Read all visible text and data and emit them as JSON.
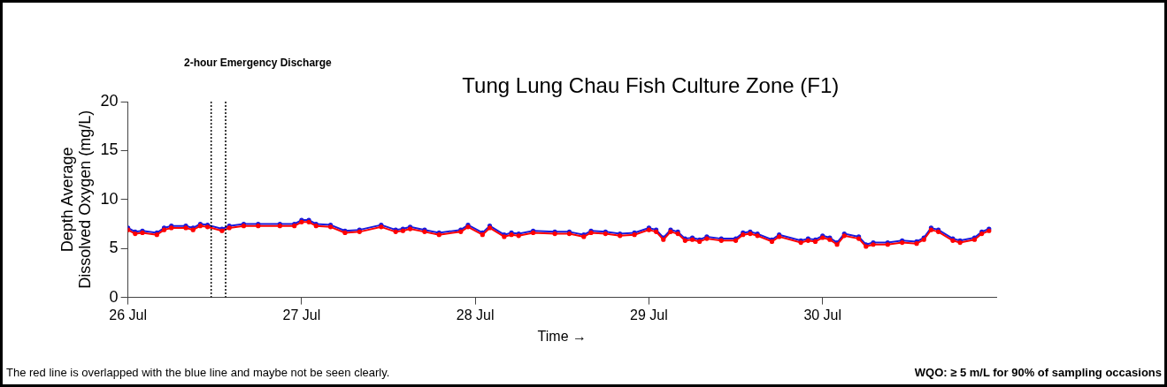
{
  "chart_data": {
    "type": "line",
    "title": "Tung Lung Chau Fish Culture Zone (F1)",
    "xlabel": "Time →",
    "ylabel": "Depth Average\nDissolved Oxygen (mg/L)",
    "xlim": [
      "--07-26T00:00",
      "--07-31T00:00"
    ],
    "xticks": [
      {
        "value": "--07-26",
        "label": "26 Jul"
      },
      {
        "value": "--07-27",
        "label": "27 Jul"
      },
      {
        "value": "--07-28",
        "label": "28 Jul"
      },
      {
        "value": "--07-29",
        "label": "29 Jul"
      },
      {
        "value": "--07-30",
        "label": "30 Jul"
      }
    ],
    "ylim": [
      0,
      20
    ],
    "yticks": [
      0,
      5,
      10,
      15,
      20
    ],
    "grid": false,
    "legend": false,
    "marker": "circle",
    "line_style": "solid",
    "x": [
      "--07-26T00:00",
      "--07-26T01:00",
      "--07-26T02:00",
      "--07-26T04:00",
      "--07-26T05:00",
      "--07-26T06:00",
      "--07-26T08:00",
      "--07-26T09:00",
      "--07-26T10:00",
      "--07-26T11:00",
      "--07-26T13:00",
      "--07-26T14:00",
      "--07-26T16:00",
      "--07-26T18:00",
      "--07-26T21:00",
      "--07-26T23:00",
      "--07-27T00:00",
      "--07-27T01:00",
      "--07-27T02:00",
      "--07-27T04:00",
      "--07-27T06:00",
      "--07-27T08:00",
      "--07-27T11:00",
      "--07-27T13:00",
      "--07-27T14:00",
      "--07-27T15:00",
      "--07-27T17:00",
      "--07-27T19:00",
      "--07-27T22:00",
      "--07-27T23:00",
      "--07-28T01:00",
      "--07-28T02:00",
      "--07-28T04:00",
      "--07-28T05:00",
      "--07-28T06:00",
      "--07-28T08:00",
      "--07-28T11:00",
      "--07-28T13:00",
      "--07-28T15:00",
      "--07-28T16:00",
      "--07-28T18:00",
      "--07-28T20:00",
      "--07-28T22:00",
      "--07-29T00:00",
      "--07-29T01:00",
      "--07-29T02:00",
      "--07-29T03:00",
      "--07-29T04:00",
      "--07-29T05:00",
      "--07-29T06:00",
      "--07-29T07:00",
      "--07-29T08:00",
      "--07-29T10:00",
      "--07-29T12:00",
      "--07-29T13:00",
      "--07-29T14:00",
      "--07-29T15:00",
      "--07-29T17:00",
      "--07-29T18:00",
      "--07-29T21:00",
      "--07-29T22:00",
      "--07-29T23:00",
      "--07-30T00:00",
      "--07-30T01:00",
      "--07-30T02:00",
      "--07-30T03:00",
      "--07-30T05:00",
      "--07-30T06:00",
      "--07-30T07:00",
      "--07-30T09:00",
      "--07-30T11:00",
      "--07-30T13:00",
      "--07-30T14:00",
      "--07-30T15:00",
      "--07-30T16:00",
      "--07-30T18:00",
      "--07-30T19:00",
      "--07-30T21:00",
      "--07-30T22:00",
      "--07-30T23:00"
    ],
    "series": [
      {
        "color": "#ff0000",
        "values": [
          6.9,
          6.5,
          6.6,
          6.4,
          6.9,
          7.1,
          7.1,
          6.9,
          7.3,
          7.2,
          6.8,
          7.1,
          7.3,
          7.3,
          7.3,
          7.3,
          7.7,
          7.7,
          7.3,
          7.2,
          6.6,
          6.7,
          7.2,
          6.7,
          6.8,
          7.0,
          6.7,
          6.4,
          6.7,
          7.2,
          6.4,
          7.1,
          6.2,
          6.4,
          6.3,
          6.6,
          6.5,
          6.5,
          6.2,
          6.6,
          6.5,
          6.3,
          6.4,
          6.9,
          6.7,
          5.9,
          6.7,
          6.5,
          5.8,
          5.9,
          5.7,
          6.0,
          5.8,
          5.8,
          6.4,
          6.5,
          6.3,
          5.7,
          6.2,
          5.6,
          5.8,
          5.7,
          6.1,
          5.9,
          5.4,
          6.3,
          6.0,
          5.2,
          5.4,
          5.4,
          5.6,
          5.5,
          5.9,
          6.9,
          6.7,
          5.8,
          5.6,
          5.9,
          6.5,
          6.8
        ]
      },
      {
        "color": "#1a1adc",
        "values": [
          7.1,
          6.7,
          6.8,
          6.6,
          7.1,
          7.3,
          7.3,
          7.1,
          7.5,
          7.4,
          7.0,
          7.3,
          7.5,
          7.5,
          7.5,
          7.5,
          7.9,
          7.9,
          7.5,
          7.4,
          6.8,
          6.9,
          7.4,
          6.9,
          7.0,
          7.2,
          6.9,
          6.6,
          6.9,
          7.4,
          6.6,
          7.3,
          6.4,
          6.6,
          6.5,
          6.8,
          6.7,
          6.7,
          6.4,
          6.8,
          6.7,
          6.5,
          6.6,
          7.1,
          6.9,
          6.1,
          6.9,
          6.7,
          6.0,
          6.1,
          5.9,
          6.2,
          6.0,
          6.0,
          6.6,
          6.7,
          6.5,
          5.9,
          6.4,
          5.8,
          6.0,
          5.9,
          6.3,
          6.1,
          5.6,
          6.5,
          6.2,
          5.4,
          5.6,
          5.6,
          5.8,
          5.7,
          6.1,
          7.1,
          6.9,
          6.0,
          5.8,
          6.1,
          6.7,
          7.0
        ]
      }
    ],
    "ref_lines": [
      {
        "axis": "x",
        "value": "--07-26T11:30",
        "color": "#000000",
        "line_style": "dotted"
      },
      {
        "axis": "x",
        "value": "--07-26T13:30",
        "color": "#000000",
        "line_style": "dotted"
      }
    ],
    "annotations": [
      "2-hour Emergency Discharge",
      "The red line is overlapped with the blue line and maybe not be seen clearly.",
      "WQO: ≥ 5 m/L for 90% of sampling occasions"
    ]
  }
}
